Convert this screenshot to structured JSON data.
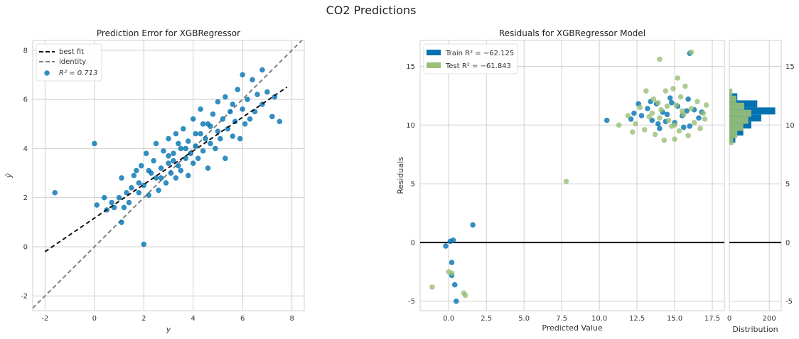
{
  "figure": {
    "title": "CO2 Predictions"
  },
  "colors": {
    "train": "#0072b2",
    "test": "#9abf77",
    "best_fit": "#111111",
    "identity": "#7f7f7f",
    "zero_line": "#111111",
    "grid": "#cfcfcf"
  },
  "chart_data": [
    {
      "type": "scatter",
      "title": "Prediction Error for XGBRegressor",
      "xlabel": "y",
      "ylabel": "ŷ",
      "xlim": [
        -2.5,
        8.5
      ],
      "ylim": [
        -2.6,
        8.4
      ],
      "xticks": [
        -2,
        0,
        2,
        4,
        6,
        8
      ],
      "yticks": [
        -2,
        0,
        2,
        4,
        6,
        8
      ],
      "grid": true,
      "legend_position": "top-left",
      "legend": [
        {
          "label": "best fit"
        },
        {
          "label": "identity"
        },
        {
          "label": "R² = 0.713"
        }
      ],
      "best_fit_line": {
        "x": [
          -2.0,
          7.8
        ],
        "y": [
          -0.2,
          6.5
        ]
      },
      "identity_line": {
        "x": [
          -2.5,
          8.5
        ],
        "y": [
          -2.5,
          8.5
        ]
      },
      "points": [
        [
          -1.6,
          2.2
        ],
        [
          0.0,
          4.2
        ],
        [
          0.1,
          1.7
        ],
        [
          0.4,
          2.0
        ],
        [
          0.5,
          1.5
        ],
        [
          0.7,
          1.8
        ],
        [
          0.8,
          1.6
        ],
        [
          1.0,
          2.0
        ],
        [
          1.1,
          2.8
        ],
        [
          1.1,
          1.0
        ],
        [
          1.2,
          1.6
        ],
        [
          1.3,
          2.2
        ],
        [
          1.4,
          1.8
        ],
        [
          1.5,
          2.4
        ],
        [
          1.6,
          2.9
        ],
        [
          1.7,
          3.1
        ],
        [
          1.8,
          2.2
        ],
        [
          1.9,
          3.3
        ],
        [
          2.0,
          0.1
        ],
        [
          2.0,
          2.5
        ],
        [
          2.1,
          3.8
        ],
        [
          2.2,
          2.1
        ],
        [
          2.3,
          3.0
        ],
        [
          2.4,
          3.5
        ],
        [
          2.5,
          2.8
        ],
        [
          2.5,
          4.2
        ],
        [
          2.6,
          2.3
        ],
        [
          2.7,
          3.2
        ],
        [
          2.8,
          3.9
        ],
        [
          2.9,
          2.6
        ],
        [
          3.0,
          3.4
        ],
        [
          3.0,
          4.4
        ],
        [
          3.1,
          3.0
        ],
        [
          3.2,
          3.8
        ],
        [
          3.3,
          2.8
        ],
        [
          3.3,
          4.6
        ],
        [
          3.4,
          3.3
        ],
        [
          3.5,
          4.0
        ],
        [
          3.5,
          3.1
        ],
        [
          3.6,
          4.8
        ],
        [
          3.7,
          3.6
        ],
        [
          3.8,
          2.9
        ],
        [
          3.8,
          4.3
        ],
        [
          3.9,
          3.8
        ],
        [
          4.0,
          5.2
        ],
        [
          4.0,
          3.4
        ],
        [
          4.1,
          4.1
        ],
        [
          4.2,
          3.6
        ],
        [
          4.3,
          4.6
        ],
        [
          4.3,
          5.6
        ],
        [
          4.4,
          3.9
        ],
        [
          4.5,
          4.4
        ],
        [
          4.6,
          3.2
        ],
        [
          4.6,
          5.0
        ],
        [
          4.7,
          4.2
        ],
        [
          4.8,
          5.4
        ],
        [
          4.9,
          4.0
        ],
        [
          5.0,
          4.7
        ],
        [
          5.0,
          5.9
        ],
        [
          5.1,
          4.4
        ],
        [
          5.2,
          5.2
        ],
        [
          5.3,
          3.6
        ],
        [
          5.3,
          6.1
        ],
        [
          5.4,
          4.8
        ],
        [
          5.5,
          5.5
        ],
        [
          5.6,
          4.5
        ],
        [
          5.7,
          5.1
        ],
        [
          5.8,
          6.4
        ],
        [
          5.9,
          4.4
        ],
        [
          6.0,
          5.6
        ],
        [
          6.1,
          5.0
        ],
        [
          6.2,
          6.0
        ],
        [
          6.3,
          5.2
        ],
        [
          6.4,
          6.8
        ],
        [
          6.5,
          5.5
        ],
        [
          6.6,
          6.2
        ],
        [
          6.8,
          5.8
        ],
        [
          7.0,
          6.3
        ],
        [
          7.2,
          5.3
        ],
        [
          7.3,
          6.1
        ],
        [
          7.5,
          5.1
        ],
        [
          6.0,
          7.0
        ],
        [
          6.8,
          7.2
        ],
        [
          3.0,
          3.7
        ],
        [
          3.4,
          4.2
        ],
        [
          3.7,
          4.0
        ],
        [
          4.1,
          4.6
        ],
        [
          4.4,
          5.0
        ],
        [
          2.7,
          2.8
        ],
        [
          3.2,
          3.5
        ],
        [
          4.7,
          4.9
        ],
        [
          5.6,
          5.8
        ],
        [
          2.2,
          3.1
        ],
        [
          1.8,
          2.6
        ]
      ]
    },
    {
      "type": "scatter",
      "title": "Residuals for XGBRegressor Model",
      "xlabel": "Predicted Value",
      "ylabel": "Residuals",
      "xlim": [
        -1.9,
        18.3
      ],
      "ylim": [
        -5.8,
        17.2
      ],
      "xticks": [
        0.0,
        2.5,
        5.0,
        7.5,
        10.0,
        12.5,
        15.0,
        17.5
      ],
      "xtick_labels": [
        "0.0",
        "2.5",
        "5.0",
        "7.5",
        "10.0",
        "12.5",
        "15.0",
        "17.5"
      ],
      "yticks": [
        -5,
        0,
        5,
        10,
        15
      ],
      "grid": true,
      "legend_position": "top-left",
      "zero_line": 0,
      "series": [
        {
          "name": "Train R² = −62.125",
          "points": [
            [
              -0.2,
              -0.3
            ],
            [
              0.1,
              0.1
            ],
            [
              0.3,
              0.2
            ],
            [
              0.2,
              -1.7
            ],
            [
              0.2,
              -2.8
            ],
            [
              0.4,
              -3.6
            ],
            [
              0.5,
              -5.0
            ],
            [
              1.6,
              1.5
            ],
            [
              16.0,
              16.1
            ],
            [
              10.5,
              10.4
            ],
            [
              12.3,
              11.0
            ],
            [
              12.8,
              10.8
            ],
            [
              13.2,
              11.4
            ],
            [
              13.5,
              10.4
            ],
            [
              13.8,
              11.8
            ],
            [
              14.0,
              9.7
            ],
            [
              14.2,
              11.1
            ],
            [
              14.5,
              10.9
            ],
            [
              14.7,
              12.3
            ],
            [
              15.0,
              10.2
            ],
            [
              15.2,
              11.6
            ],
            [
              15.5,
              10.8
            ],
            [
              15.8,
              11.2
            ],
            [
              16.0,
              9.9
            ],
            [
              16.3,
              11.3
            ],
            [
              16.6,
              10.6
            ],
            [
              12.6,
              11.8
            ],
            [
              13.9,
              10.1
            ],
            [
              14.8,
              11.9
            ],
            [
              15.6,
              9.8
            ],
            [
              16.8,
              11.1
            ],
            [
              13.4,
              12.0
            ],
            [
              12.1,
              10.5
            ],
            [
              15.9,
              12.2
            ],
            [
              14.4,
              10.3
            ]
          ]
        },
        {
          "name": "Test R² = −61.843",
          "points": [
            [
              -1.1,
              -3.8
            ],
            [
              0.0,
              -2.5
            ],
            [
              0.2,
              -2.6
            ],
            [
              1.0,
              -4.3
            ],
            [
              1.1,
              -4.5
            ],
            [
              7.8,
              5.2
            ],
            [
              14.0,
              15.6
            ],
            [
              16.1,
              16.2
            ],
            [
              11.3,
              10.0
            ],
            [
              11.9,
              10.8
            ],
            [
              12.4,
              10.1
            ],
            [
              12.7,
              11.5
            ],
            [
              13.0,
              9.6
            ],
            [
              13.3,
              10.7
            ],
            [
              13.6,
              12.2
            ],
            [
              13.7,
              9.2
            ],
            [
              14.1,
              11.3
            ],
            [
              14.3,
              8.7
            ],
            [
              14.4,
              12.9
            ],
            [
              14.6,
              10.4
            ],
            [
              14.9,
              13.1
            ],
            [
              15.0,
              8.8
            ],
            [
              15.1,
              11.7
            ],
            [
              15.3,
              9.5
            ],
            [
              15.4,
              12.4
            ],
            [
              15.6,
              10.9
            ],
            [
              15.7,
              13.3
            ],
            [
              15.9,
              9.1
            ],
            [
              16.1,
              11.4
            ],
            [
              16.3,
              10.2
            ],
            [
              16.5,
              12.0
            ],
            [
              16.7,
              9.7
            ],
            [
              16.9,
              11.0
            ],
            [
              17.0,
              10.5
            ],
            [
              17.1,
              11.7
            ],
            [
              15.2,
              14.0
            ],
            [
              13.1,
              12.9
            ],
            [
              12.2,
              9.4
            ],
            [
              14.8,
              9.9
            ],
            [
              13.5,
              11.0
            ],
            [
              14.0,
              10.6
            ],
            [
              14.5,
              11.6
            ],
            [
              15.0,
              10.0
            ],
            [
              15.5,
              11.2
            ],
            [
              13.9,
              11.9
            ]
          ]
        }
      ]
    },
    {
      "type": "bar",
      "title": "",
      "xlabel": "Distribution",
      "xticks": [
        0,
        200
      ],
      "xlim": [
        0,
        260
      ],
      "yticks": [
        -5,
        0,
        5,
        10,
        15
      ],
      "ylim": [
        -5.8,
        17.2
      ],
      "orientation": "horizontal",
      "series": [
        {
          "name": "Train",
          "bins": [
            [
              8.5,
              9.1,
              30
            ],
            [
              9.1,
              9.7,
              70
            ],
            [
              9.7,
              10.3,
              110
            ],
            [
              10.3,
              10.9,
              160
            ],
            [
              10.9,
              11.5,
              230
            ],
            [
              11.5,
              12.1,
              140
            ],
            [
              12.1,
              12.7,
              40
            ]
          ]
        },
        {
          "name": "Test",
          "bins": [
            [
              8.3,
              8.9,
              20
            ],
            [
              8.9,
              9.5,
              40
            ],
            [
              9.5,
              10.1,
              70
            ],
            [
              10.1,
              10.7,
              95
            ],
            [
              10.7,
              11.3,
              110
            ],
            [
              11.3,
              11.9,
              75
            ],
            [
              11.9,
              12.5,
              35
            ],
            [
              12.5,
              13.1,
              15
            ]
          ]
        }
      ]
    }
  ]
}
